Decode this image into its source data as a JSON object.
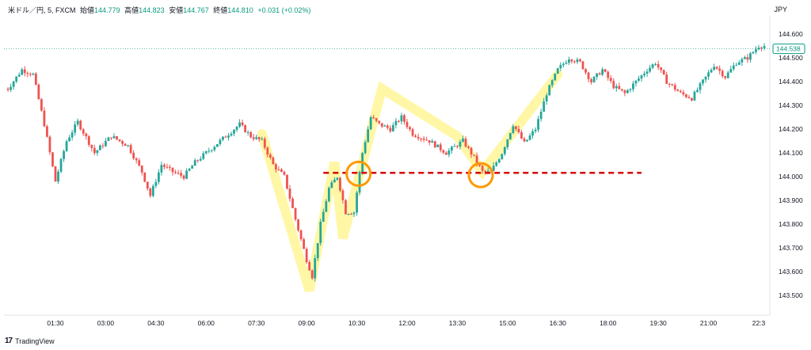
{
  "header": {
    "symbol": "米ドル／円, 5, FXCM",
    "open_label": "始値",
    "open": "144.779",
    "high_label": "高値",
    "high": "144.823",
    "low_label": "安値",
    "low": "144.767",
    "close_label": "終値",
    "close": "144.810",
    "change": "+0.031 (+0.02%)"
  },
  "currency": "JPY",
  "brand": "TradingView",
  "colors": {
    "up": "#26a69a",
    "down": "#ef5350",
    "highlight": "#fff7a6",
    "circle": "#ff9800",
    "level": "#d50000",
    "price_tag": "#089981"
  },
  "chart_data": {
    "type": "candlestick",
    "title": "",
    "xlabel": "",
    "ylabel": "",
    "ylim": [
      143.45,
      144.62
    ],
    "y_ticks": [
      "144.600",
      "144.500",
      "144.400",
      "144.300",
      "144.200",
      "144.100",
      "144.000",
      "143.900",
      "143.800",
      "143.700",
      "143.600",
      "143.500"
    ],
    "x_ticks": [
      "01:30",
      "03:00",
      "04:30",
      "06:00",
      "07:30",
      "09:00",
      "10:30",
      "12:00",
      "13:30",
      "15:00",
      "16:30",
      "18:00",
      "19:30",
      "21:00",
      "22:3"
    ],
    "last_price": "144.538",
    "support_level": 144.016,
    "support_level_range": [
      "09:30",
      "19:00"
    ],
    "marked_points": [
      {
        "time": "10:33",
        "price": 144.012
      },
      {
        "time": "14:12",
        "price": 144.006
      }
    ],
    "highlight_path": [
      {
        "time": "07:40",
        "price": 144.18
      },
      {
        "time": "09:05",
        "price": 143.52
      },
      {
        "time": "09:50",
        "price": 144.06
      },
      {
        "time": "10:05",
        "price": 143.74
      },
      {
        "time": "11:15",
        "price": 144.37
      },
      {
        "time": "13:30",
        "price": 144.17
      },
      {
        "time": "14:15",
        "price": 144.02
      },
      {
        "time": "16:30",
        "price": 144.43
      }
    ],
    "trend_close": [
      [
        "00:05",
        144.37
      ],
      [
        "00:30",
        144.45
      ],
      [
        "00:50",
        144.43
      ],
      [
        "01:10",
        144.22
      ],
      [
        "01:30",
        143.98
      ],
      [
        "01:50",
        144.15
      ],
      [
        "02:10",
        144.23
      ],
      [
        "02:40",
        144.1
      ],
      [
        "03:10",
        144.17
      ],
      [
        "03:40",
        144.13
      ],
      [
        "04:05",
        144.02
      ],
      [
        "04:20",
        143.92
      ],
      [
        "04:40",
        144.05
      ],
      [
        "05:00",
        144.02
      ],
      [
        "05:20",
        144.0
      ],
      [
        "05:40",
        144.06
      ],
      [
        "06:10",
        144.12
      ],
      [
        "06:40",
        144.18
      ],
      [
        "07:00",
        144.22
      ],
      [
        "07:20",
        144.17
      ],
      [
        "07:40",
        144.15
      ],
      [
        "08:00",
        144.05
      ],
      [
        "08:20",
        144.0
      ],
      [
        "08:40",
        143.82
      ],
      [
        "09:00",
        143.65
      ],
      [
        "09:10",
        143.58
      ],
      [
        "09:25",
        143.8
      ],
      [
        "09:40",
        143.95
      ],
      [
        "09:55",
        144.0
      ],
      [
        "10:10",
        143.85
      ],
      [
        "10:25",
        143.85
      ],
      [
        "10:40",
        144.1
      ],
      [
        "10:55",
        144.25
      ],
      [
        "11:10",
        144.22
      ],
      [
        "11:30",
        144.2
      ],
      [
        "11:50",
        144.25
      ],
      [
        "12:10",
        144.18
      ],
      [
        "12:40",
        144.15
      ],
      [
        "13:10",
        144.1
      ],
      [
        "13:40",
        144.15
      ],
      [
        "14:00",
        144.08
      ],
      [
        "14:15",
        144.02
      ],
      [
        "14:30",
        144.02
      ],
      [
        "14:50",
        144.1
      ],
      [
        "15:10",
        144.22
      ],
      [
        "15:30",
        144.14
      ],
      [
        "15:50",
        144.2
      ],
      [
        "16:10",
        144.35
      ],
      [
        "16:30",
        144.45
      ],
      [
        "16:50",
        144.5
      ],
      [
        "17:10",
        144.48
      ],
      [
        "17:30",
        144.4
      ],
      [
        "17:50",
        144.45
      ],
      [
        "18:10",
        144.38
      ],
      [
        "18:30",
        144.35
      ],
      [
        "18:50",
        144.4
      ],
      [
        "19:10",
        144.45
      ],
      [
        "19:25",
        144.48
      ],
      [
        "19:45",
        144.4
      ],
      [
        "20:10",
        144.35
      ],
      [
        "20:30",
        144.33
      ],
      [
        "20:50",
        144.4
      ],
      [
        "21:10",
        144.47
      ],
      [
        "21:30",
        144.42
      ],
      [
        "21:50",
        144.48
      ],
      [
        "22:10",
        144.5
      ],
      [
        "22:30",
        144.55
      ]
    ]
  }
}
